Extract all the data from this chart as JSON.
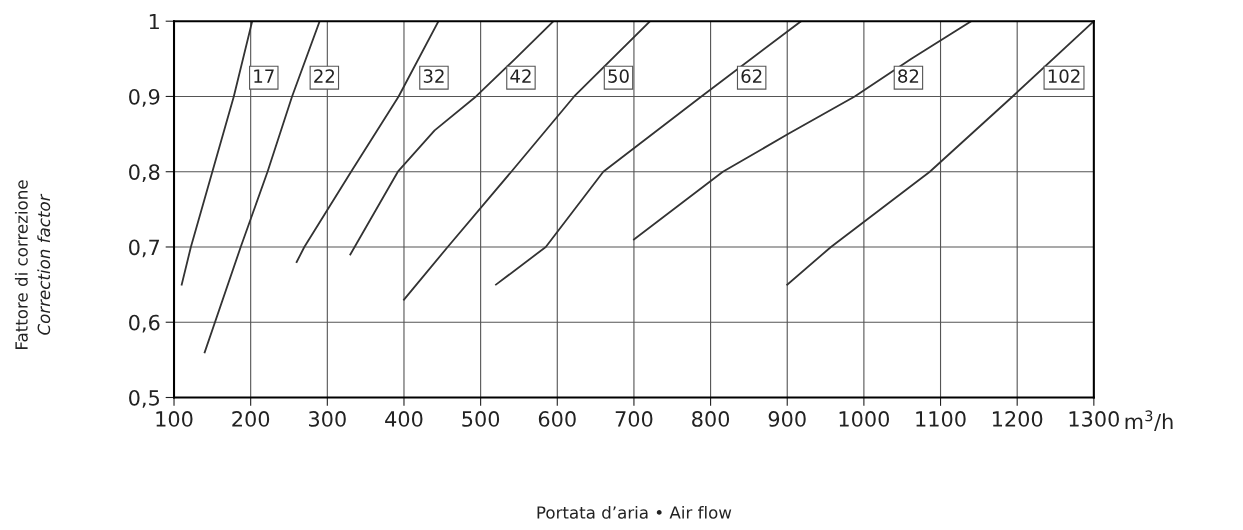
{
  "chart_data": {
    "type": "line",
    "xlabel": "Portata d’aria • Air flow",
    "ylabel": "Fattore di correzione\nCorrection factor",
    "annotations": [
      "m$^{3}$/h"
    ],
    "xlim": [
      100,
      1300
    ],
    "ylim": [
      0.5,
      1
    ],
    "xticks": [
      100,
      200,
      300,
      400,
      500,
      600,
      700,
      800,
      900,
      1000,
      1100,
      1200,
      1300
    ],
    "yticks": [
      {
        "value": 0.5,
        "label": "0,5"
      },
      {
        "value": 0.6,
        "label": "0,6"
      },
      {
        "value": 0.7,
        "label": "0,7"
      },
      {
        "value": 0.8,
        "label": "0,8"
      },
      {
        "value": 0.9,
        "label": "0,9"
      },
      1
    ],
    "grid": true,
    "legend": false,
    "marker": "none",
    "line_style": "solid",
    "series": [
      {
        "name": "17",
        "color": "#333333",
        "x": [
          110,
          122,
          150,
          178,
          202
        ],
        "values": [
          0.65,
          0.7,
          0.8,
          0.9,
          1.0
        ]
      },
      {
        "name": "22",
        "color": "#333333",
        "x": [
          140,
          187,
          222,
          254,
          290
        ],
        "values": [
          0.56,
          0.7,
          0.8,
          0.9,
          1.0
        ]
      },
      {
        "name": "32",
        "color": "#333333",
        "x": [
          260,
          270,
          331,
          393,
          445
        ],
        "values": [
          0.68,
          0.7,
          0.8,
          0.9,
          1.0
        ]
      },
      {
        "name": "42",
        "color": "#333333",
        "x": [
          330,
          392,
          440,
          494,
          545,
          595
        ],
        "values": [
          0.69,
          0.8,
          0.855,
          0.9,
          0.95,
          1.0
        ]
      },
      {
        "name": "50",
        "color": "#333333",
        "x": [
          400,
          457,
          540,
          622,
          721
        ],
        "values": [
          0.63,
          0.7,
          0.8,
          0.9,
          1.0
        ]
      },
      {
        "name": "62",
        "color": "#333333",
        "x": [
          520,
          585,
          660,
          788,
          918
        ],
        "values": [
          0.65,
          0.7,
          0.8,
          0.9,
          1.0
        ]
      },
      {
        "name": "82",
        "color": "#333333",
        "x": [
          700,
          816,
          901,
          988,
          1062,
          1140
        ],
        "values": [
          0.71,
          0.8,
          0.85,
          0.9,
          0.95,
          1.0
        ]
      },
      {
        "name": "102",
        "color": "#333333",
        "x": [
          900,
          957,
          1086,
          1194,
          1300
        ],
        "values": [
          0.65,
          0.7,
          0.8,
          0.9,
          1.0
        ]
      }
    ]
  }
}
